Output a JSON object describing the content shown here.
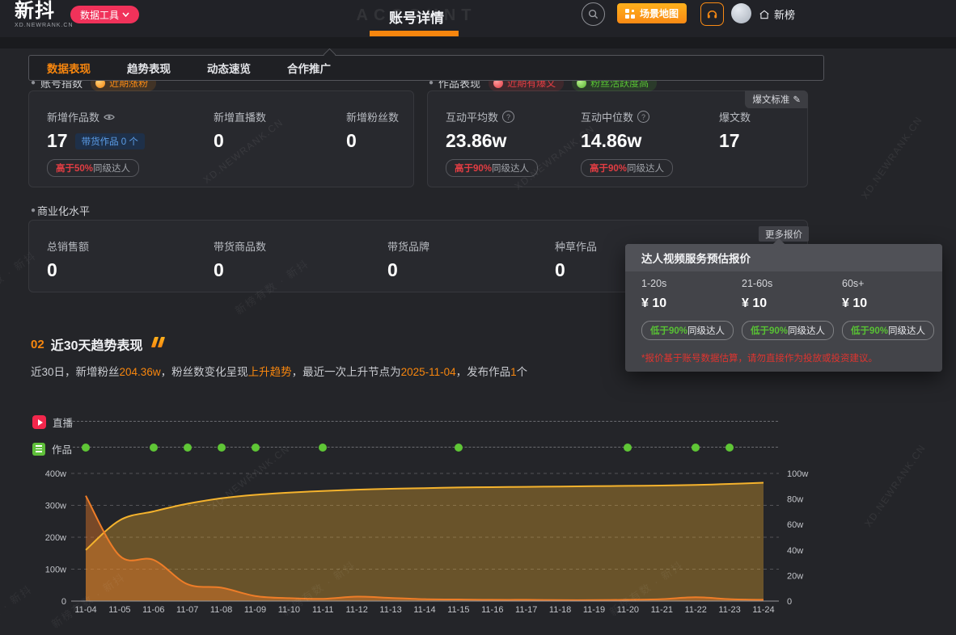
{
  "nav": {
    "logo_title": "新抖",
    "logo_subtitle": "XD.NEWRANK.CN",
    "tools_button": "数据工具",
    "page_title": "账号详情",
    "page_title_bg": "ACCOUNT",
    "scene_map_button": "场景地图",
    "home_label": "新榜"
  },
  "tabs": [
    {
      "label": "数据表现",
      "active": true
    },
    {
      "label": "趋势表现",
      "active": false
    },
    {
      "label": "动态速览",
      "active": false
    },
    {
      "label": "合作推广",
      "active": false
    }
  ],
  "sub_headers": {
    "left_title": "账号指数",
    "left_badge": "近期涨粉",
    "right_title": "作品表现",
    "right_badge_red": "近期有爆文",
    "right_badge_green": "粉丝活跃度高"
  },
  "stats_card": {
    "metrics": [
      {
        "label": "新增作品数",
        "value": "17",
        "sub_badge": "带货作品 0 个",
        "rank_hl": "高于50%",
        "rank_rest": "同级达人"
      },
      {
        "label": "新增直播数",
        "value": "0"
      },
      {
        "label": "新增粉丝数",
        "value": "0"
      }
    ]
  },
  "works_card": {
    "corner_button": "爆文标准",
    "metrics": [
      {
        "label": "互动平均数",
        "value": "23.86w",
        "rank_hl": "高于90%",
        "rank_rest": "同级达人"
      },
      {
        "label": "互动中位数",
        "value": "14.86w",
        "rank_hl": "高于90%",
        "rank_rest": "同级达人"
      },
      {
        "label": "爆文数",
        "value": "17"
      }
    ]
  },
  "commerce": {
    "section_title": "商业化水平",
    "more_button": "更多报价",
    "metrics": [
      {
        "label": "总销售额",
        "value": "0"
      },
      {
        "label": "带货商品数",
        "value": "0"
      },
      {
        "label": "带货品牌",
        "value": "0"
      },
      {
        "label": "种草作品",
        "value": "0"
      }
    ]
  },
  "quote_popup": {
    "title": "达人视频服务预估报价",
    "items": [
      {
        "duration": "1-20s",
        "price": "¥ 10",
        "rank_hl": "低于90%",
        "rank_rest": "同级达人"
      },
      {
        "duration": "21-60s",
        "price": "¥ 10",
        "rank_hl": "低于90%",
        "rank_rest": "同级达人"
      },
      {
        "duration": "60s+",
        "price": "¥ 10",
        "rank_hl": "低于90%",
        "rank_rest": "同级达人"
      }
    ],
    "note": "*报价基于账号数据估算，请勿直接作为投放或投资建议。"
  },
  "trend": {
    "number": "02",
    "title": "近30天趋势表现",
    "summary": [
      {
        "t": "近30日，新增粉丝",
        "hl": false
      },
      {
        "t": "204.36w",
        "hl": true
      },
      {
        "t": "，粉丝数变化呈现",
        "hl": false
      },
      {
        "t": "上升趋势",
        "hl": true
      },
      {
        "t": "，最近一次上升节点为",
        "hl": false
      },
      {
        "t": "2025-11-04",
        "hl": true
      },
      {
        "t": "，发布作品",
        "hl": false
      },
      {
        "t": "1",
        "hl": true
      },
      {
        "t": "个",
        "hl": false
      }
    ]
  },
  "chart_data": {
    "type": "area",
    "x": [
      "11-04",
      "11-05",
      "11-06",
      "11-07",
      "11-08",
      "11-09",
      "11-10",
      "11-11",
      "11-12",
      "11-13",
      "11-14",
      "11-15",
      "11-16",
      "11-17",
      "11-18",
      "11-19",
      "11-20",
      "11-21",
      "11-22",
      "11-23",
      "11-24"
    ],
    "series": [
      {
        "id": "series-1",
        "color": "#f5b32d",
        "fill": "rgba(245,179,45,0.33)",
        "axis": "left",
        "values_w": [
          160,
          253,
          281,
          305,
          322,
          333,
          340,
          345,
          349,
          352,
          354,
          356,
          357,
          358,
          359,
          360,
          361,
          362,
          364,
          367,
          371
        ]
      },
      {
        "id": "series-2",
        "color": "#ee7d28",
        "fill": "rgba(238,125,40,0.42)",
        "axis": "left",
        "values_w": [
          330,
          142,
          129,
          53,
          42,
          16,
          9,
          7,
          14,
          10,
          6,
          5,
          4,
          4,
          3,
          3,
          4,
          6,
          12,
          6,
          4
        ]
      }
    ],
    "left_axis": {
      "ticks": [
        "0",
        "100w",
        "200w",
        "300w",
        "400w"
      ],
      "max_w": 400
    },
    "right_axis": {
      "ticks": [
        "0",
        "20w",
        "40w",
        "60w",
        "80w",
        "100w"
      ],
      "max_w": 100
    },
    "grid": true,
    "legend_rows": [
      {
        "label": "直播",
        "icon": "live-icon",
        "dot_dates": []
      },
      {
        "label": "作品",
        "icon": "works-icon",
        "dot_dates": [
          "11-04",
          "11-06",
          "11-07",
          "11-08",
          "11-09",
          "11-11",
          "11-15",
          "11-20",
          "11-22",
          "11-23"
        ]
      }
    ]
  },
  "watermarks": {
    "en": "XD.NEWRANK.CN",
    "cn": "新榜有数 · 新抖"
  },
  "colors": {
    "accent_orange": "#f7860e",
    "brand_pink": "#f0325a",
    "rank_red": "#e23d43",
    "rank_green": "#58c234",
    "link_blue": "#5b9de8",
    "line_yellow": "#f5b32d",
    "line_orange": "#ee7d28"
  }
}
